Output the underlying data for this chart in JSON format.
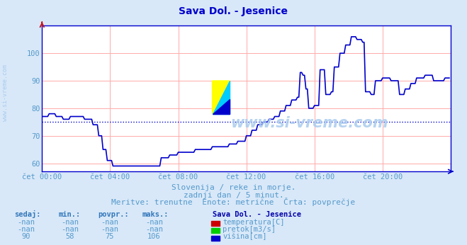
{
  "title": "Sava Dol. - Jesenice",
  "title_color": "#0000cc",
  "bg_color": "#d8e8f8",
  "plot_bg_color": "#ffffff",
  "grid_color": "#ffaaaa",
  "axis_color": "#0000cc",
  "text_color": "#5599cc",
  "line_color": "#0000cc",
  "avg_line_color": "#0000cc",
  "xlabel_times": [
    "čet 00:00",
    "čet 04:00",
    "čet 08:00",
    "čet 12:00",
    "čet 16:00",
    "čet 20:00"
  ],
  "yticks": [
    60,
    70,
    80,
    90,
    100
  ],
  "ylim": [
    57,
    110
  ],
  "xlim": [
    0,
    288
  ],
  "avg_value": 75,
  "subtitle1": "Slovenija / reke in morje.",
  "subtitle2": "zadnji dan / 5 minut.",
  "subtitle3": "Meritve: trenutne  Enote: metrične  Črta: povprečje",
  "table_headers": [
    "sedaj:",
    "min.:",
    "povpr.:",
    "maks.:"
  ],
  "table_row1": [
    "-nan",
    "-nan",
    "-nan",
    "-nan"
  ],
  "table_row2": [
    "-nan",
    "-nan",
    "-nan",
    "-nan"
  ],
  "table_row3": [
    "90",
    "58",
    "75",
    "106"
  ],
  "legend_title": "Sava Dol. - Jesenice",
  "legend_items": [
    "temperatura[C]",
    "pretok[m3/s]",
    "višina[cm]"
  ],
  "legend_colors": [
    "#cc0000",
    "#00cc00",
    "#0000cc"
  ],
  "watermark": "www.si-vreme.com",
  "watermark_color": "#aaccee",
  "logo_yellow": "#ffff00",
  "logo_cyan": "#00ccff",
  "logo_blue": "#0000cc",
  "sidebar_text": "www.si-vreme.com",
  "sidebar_color": "#aaccee"
}
